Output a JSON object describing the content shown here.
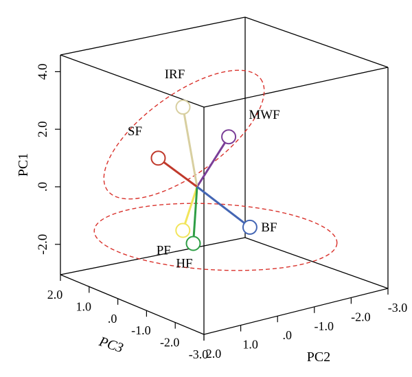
{
  "chart_data": {
    "type": "scatter",
    "projection": "3d-box",
    "xlabel": "PC3",
    "ylabel": "PC2",
    "zlabel": "PC1",
    "axes": {
      "pc1": {
        "label": "PC1",
        "ticks": [
          {
            "value": 4.0,
            "label": "4.0"
          },
          {
            "value": 2.0,
            "label": "2.0"
          },
          {
            "value": 0.0,
            "label": ".0"
          },
          {
            "value": -2.0,
            "label": "-2.0"
          }
        ]
      },
      "pc3": {
        "label": "PC3",
        "ticks": [
          {
            "value": 2.0,
            "label": "2.0"
          },
          {
            "value": 1.0,
            "label": "1.0"
          },
          {
            "value": 0.0,
            "label": ".0"
          },
          {
            "value": -1.0,
            "label": "-1.0"
          },
          {
            "value": -2.0,
            "label": "-2.0"
          },
          {
            "value": -3.0,
            "label": "-3.0"
          }
        ]
      },
      "pc2": {
        "label": "PC2",
        "ticks": [
          {
            "value": 2.0,
            "label": "2.0"
          },
          {
            "value": 1.0,
            "label": "1.0"
          },
          {
            "value": 0.0,
            "label": ".0"
          },
          {
            "value": -1.0,
            "label": "-1.0"
          },
          {
            "value": -2.0,
            "label": "-2.0"
          },
          {
            "value": -3.0,
            "label": "-3.0"
          }
        ]
      }
    },
    "origin": {
      "pc3": 0.0,
      "pc2": 0.0,
      "pc1": 0.0
    },
    "points": [
      {
        "name": "MWF",
        "pc3": 0.8,
        "pc2": -1.8,
        "pc1": 3.1,
        "color": "#7b3f98"
      },
      {
        "name": "IRF",
        "pc3": -0.3,
        "pc2": 0.8,
        "pc1": 2.2,
        "color": "#d8cfa0"
      },
      {
        "name": "SF",
        "pc3": 0.0,
        "pc2": 2.2,
        "pc1": 0.0,
        "color": "#c0392b"
      },
      {
        "name": "PF",
        "pc3": 0.7,
        "pc2": 0.8,
        "pc1": -1.4,
        "color": "#f2e55b"
      },
      {
        "name": "HF",
        "pc3": 1.7,
        "pc2": 0.2,
        "pc1": -0.9,
        "color": "#2e9e45"
      },
      {
        "name": "BF",
        "pc3": 0.8,
        "pc2": -3.0,
        "pc1": 0.5,
        "color": "#4466b4"
      }
    ],
    "groups": [
      {
        "members": [
          "MWF",
          "IRF",
          "SF"
        ]
      },
      {
        "members": [
          "PF",
          "HF",
          "BF"
        ]
      }
    ],
    "grid": false,
    "legend": "none"
  }
}
